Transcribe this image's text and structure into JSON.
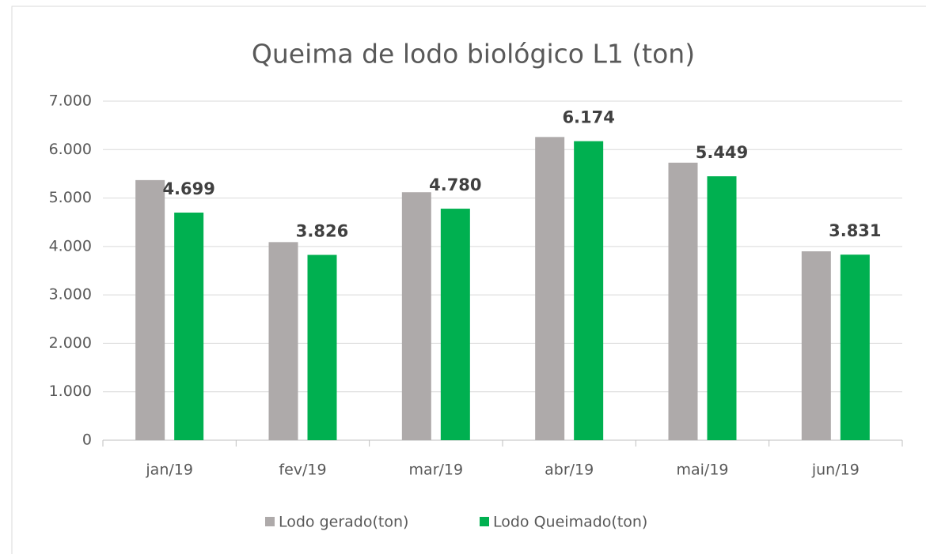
{
  "chart_data": {
    "type": "bar",
    "title": "Queima de lodo biológico L1 (ton)",
    "categories": [
      "jan/19",
      "fev/19",
      "mar/19",
      "abr/19",
      "mai/19",
      "jun/19"
    ],
    "series": [
      {
        "name": "Lodo gerado(ton)",
        "color": "#aeaaaa",
        "values": [
          5370,
          4090,
          5120,
          6260,
          5730,
          3900
        ]
      },
      {
        "name": "Lodo Queimado(ton)",
        "color": "#00b050",
        "values": [
          4699,
          3826,
          4780,
          6174,
          5449,
          3831
        ],
        "value_labels": [
          "4.699",
          "3.826",
          "4.780",
          "6.174",
          "5.449",
          "3.831"
        ]
      }
    ],
    "ylim": [
      0,
      7000
    ],
    "yticks": [
      0,
      {
        "value": 1000,
        "label": "1.000"
      },
      {
        "value": 2000,
        "label": "2.000"
      },
      {
        "value": 3000,
        "label": "3.000"
      },
      {
        "value": 4000,
        "label": "4.000"
      },
      {
        "value": 5000,
        "label": "5.000"
      },
      {
        "value": 6000,
        "label": "6.000"
      },
      {
        "value": 7000,
        "label": "7.000"
      }
    ],
    "grid": true,
    "legend": "bottom"
  }
}
